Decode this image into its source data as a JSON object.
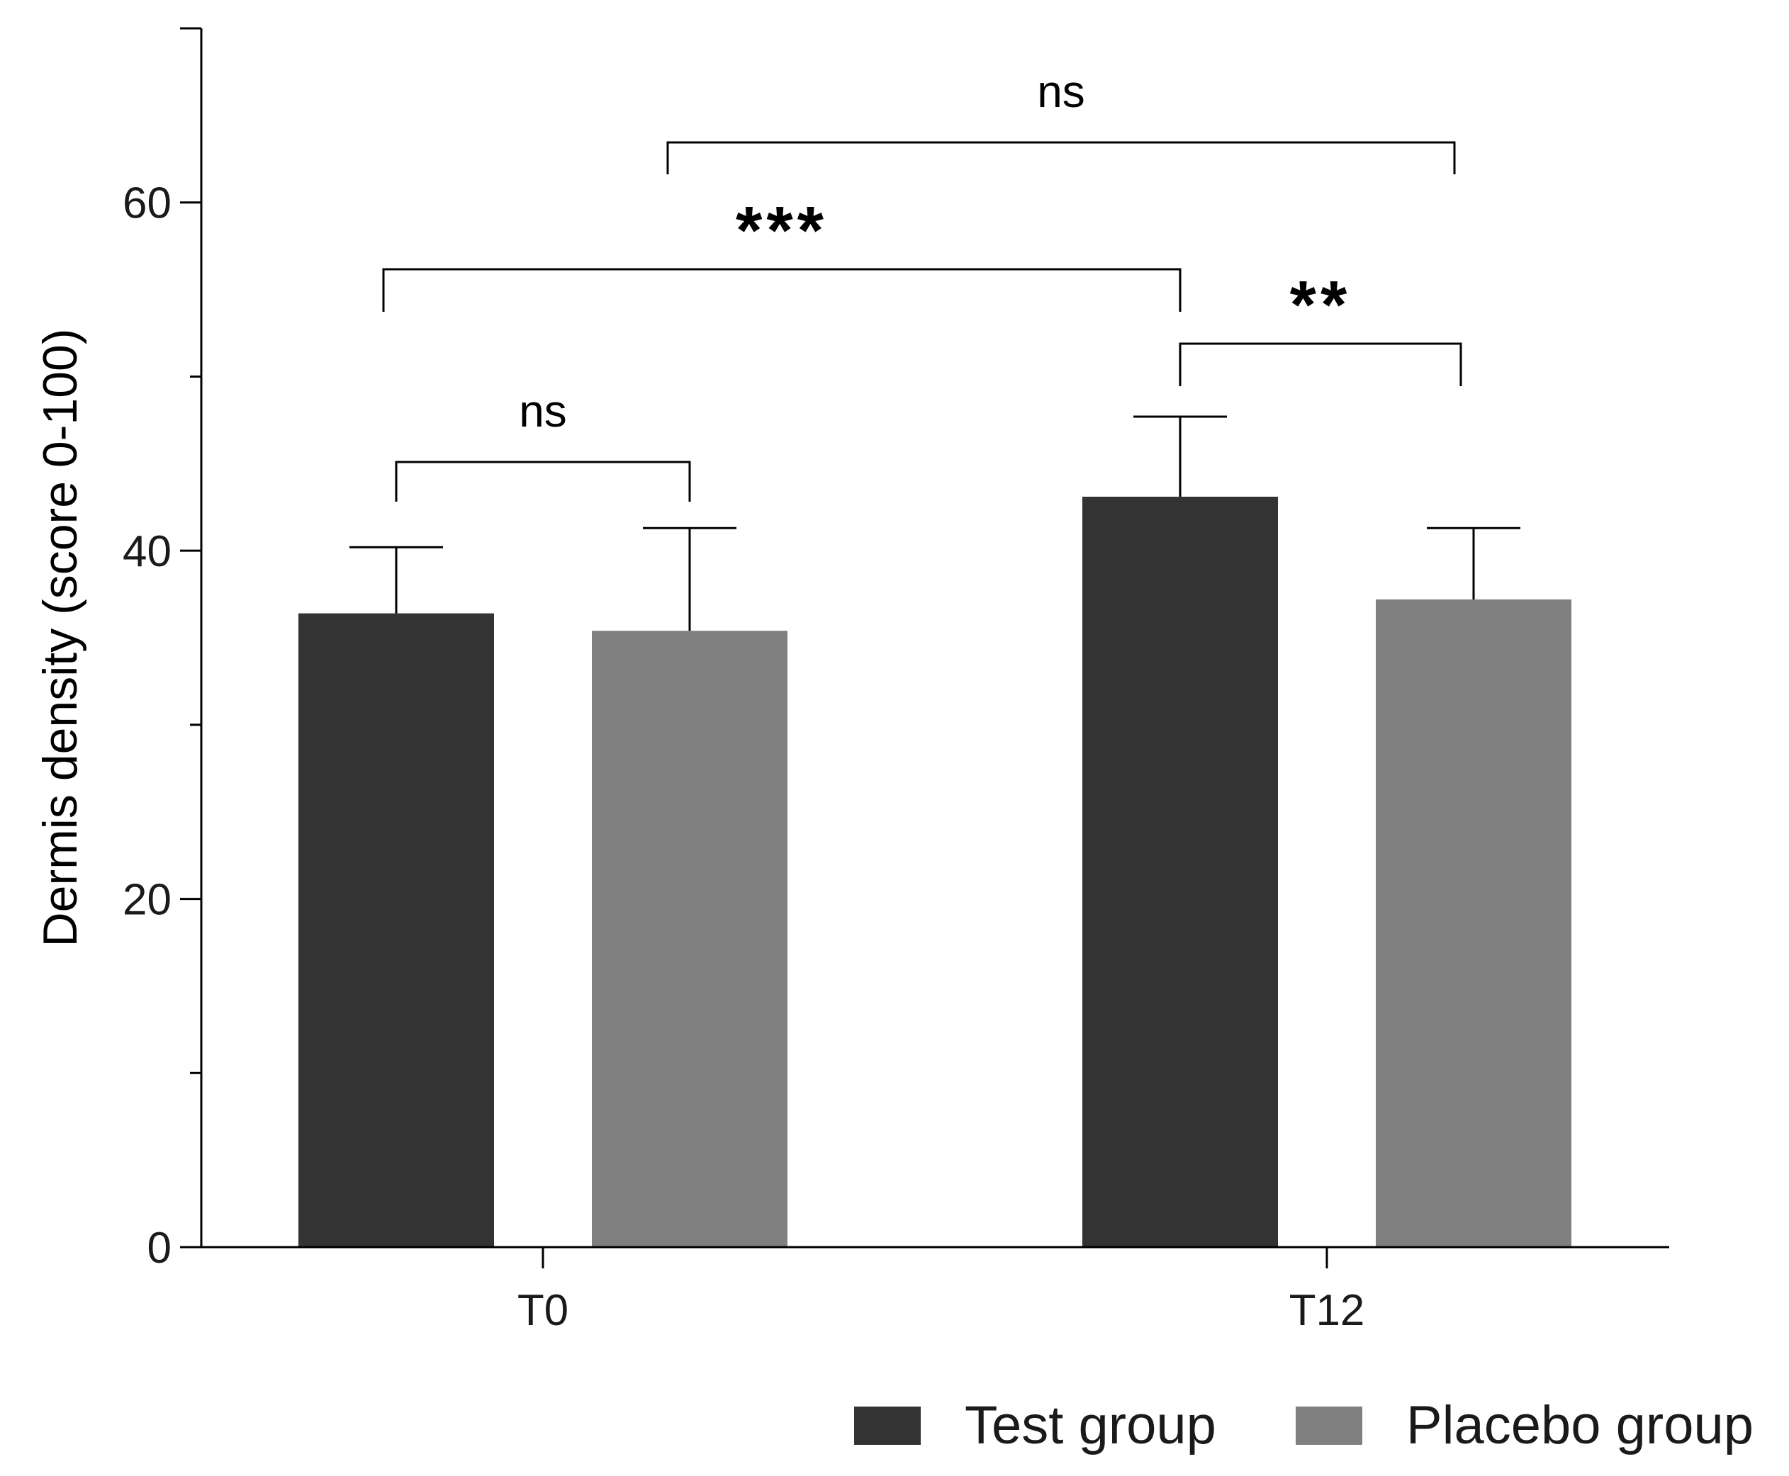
{
  "chart_data": {
    "type": "bar",
    "categories": [
      "T0",
      "T12"
    ],
    "series": [
      {
        "name": "Test group",
        "color": "#333333",
        "values": [
          36.4,
          43.1
        ],
        "errors": [
          3.8,
          4.6
        ]
      },
      {
        "name": "Placebo group",
        "color": "#808080",
        "values": [
          35.4,
          37.2
        ],
        "errors": [
          5.9,
          4.1
        ]
      }
    ],
    "ylabel": "Dermis density (score 0-100)",
    "xlabel": "",
    "ylim": [
      0,
      70
    ],
    "yticks": [
      0,
      20,
      40,
      60
    ],
    "yminor_ticks": [
      10,
      30,
      50
    ],
    "yticks_labels": [
      "0",
      "20",
      "40",
      "60"
    ],
    "legend_position": "bottom-right",
    "significance": [
      {
        "from": "T0 Test group",
        "to": "T0 Placebo group",
        "label": "ns"
      },
      {
        "from": "T0 Test group",
        "to": "T12 Test group",
        "label": "***"
      },
      {
        "from": "T12 Test group",
        "to": "T12 Placebo group",
        "label": "**"
      },
      {
        "from": "T0 Placebo group",
        "to": "T12 Placebo group",
        "label": "ns"
      }
    ]
  }
}
